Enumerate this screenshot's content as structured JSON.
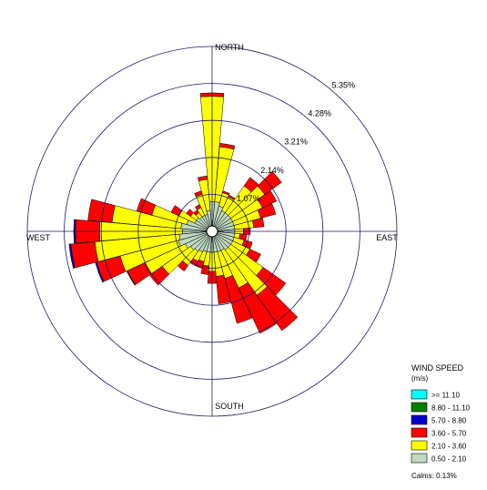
{
  "chart_data": {
    "type": "wind-rose",
    "directions": {
      "north": "NORTH",
      "east": "EAST",
      "south": "SOUTH",
      "west": "WEST"
    },
    "rings": [
      "1.07%",
      "2.14%",
      "3.21%",
      "4.28%",
      "5.35%"
    ],
    "ring_values": [
      1.07,
      2.14,
      3.21,
      4.28,
      5.35
    ],
    "legend": {
      "title": "WIND SPEED",
      "unit": "(m/s)",
      "calms": "Calms: 0.13%"
    },
    "bins": [
      {
        "label": ">= 11.10",
        "color": "#00ffff"
      },
      {
        "label": "8.80 - 11.10",
        "color": "#008000"
      },
      {
        "label": "5.70 - 8.80",
        "color": "#0000cc"
      },
      {
        "label": "3.60 - 5.70",
        "color": "#ff0000"
      },
      {
        "label": "2.10 - 3.60",
        "color": "#ffff00"
      },
      {
        "label": "0.50 - 2.10",
        "color": "#c0d8c0"
      }
    ],
    "sector_degrees": [
      0,
      10,
      20,
      30,
      40,
      50,
      60,
      70,
      80,
      90,
      100,
      110,
      120,
      130,
      140,
      150,
      160,
      170,
      180,
      190,
      200,
      210,
      220,
      230,
      240,
      250,
      260,
      270,
      280,
      290,
      300,
      310,
      320,
      330,
      340,
      350
    ],
    "sectors": [
      [
        0.7,
        3.05,
        0.1,
        0,
        0,
        0
      ],
      [
        0.7,
        1.6,
        0.1,
        0,
        0,
        0
      ],
      [
        0.6,
        0.4,
        0.05,
        0,
        0,
        0
      ],
      [
        0.5,
        0.45,
        0.05,
        0,
        0,
        0
      ],
      [
        0.5,
        0.95,
        0.3,
        0,
        0,
        0
      ],
      [
        0.5,
        1.2,
        0.6,
        0,
        0,
        0
      ],
      [
        0.5,
        0.95,
        0.45,
        0,
        0,
        0
      ],
      [
        0.5,
        0.8,
        0.45,
        0,
        0,
        0
      ],
      [
        0.5,
        0.55,
        0.3,
        0,
        0,
        0
      ],
      [
        0.5,
        0.25,
        0.2,
        0,
        0,
        0
      ],
      [
        0.5,
        0.15,
        0.2,
        0,
        0,
        0
      ],
      [
        0.5,
        0.3,
        0.25,
        0,
        0,
        0
      ],
      [
        0.5,
        0.55,
        0.35,
        0,
        0,
        0
      ],
      [
        0.5,
        1.15,
        0.8,
        0,
        0,
        0
      ],
      [
        0.5,
        1.6,
        1.25,
        0,
        0,
        0
      ],
      [
        0.45,
        1.2,
        1.45,
        0,
        0,
        0
      ],
      [
        0.45,
        0.8,
        1.35,
        0,
        0,
        0
      ],
      [
        0.45,
        0.7,
        0.8,
        0,
        0,
        0
      ],
      [
        0.45,
        0.55,
        0.35,
        0,
        0,
        0
      ],
      [
        0.45,
        0.4,
        0.25,
        0,
        0,
        0
      ],
      [
        0.45,
        0.3,
        0.2,
        0,
        0,
        0
      ],
      [
        0.5,
        0.3,
        0.15,
        0,
        0,
        0
      ],
      [
        0.55,
        0.5,
        0.2,
        0,
        0,
        0
      ],
      [
        0.6,
        1.0,
        0.45,
        0,
        0,
        0
      ],
      [
        0.7,
        1.3,
        0.55,
        0.02,
        0,
        0
      ],
      [
        0.85,
        1.75,
        0.7,
        0.04,
        0,
        0
      ],
      [
        0.8,
        2.45,
        0.7,
        0.05,
        0,
        0
      ],
      [
        0.7,
        2.4,
        0.7,
        0.05,
        0,
        0
      ],
      [
        0.75,
        2.0,
        0.7,
        0,
        0,
        0
      ],
      [
        0.6,
        1.05,
        0.45,
        0,
        0,
        0
      ],
      [
        0.4,
        0.5,
        0.25,
        0,
        0,
        0
      ],
      [
        0.4,
        0.2,
        0.15,
        0,
        0,
        0
      ],
      [
        0.35,
        0.15,
        0.1,
        0,
        0,
        0
      ],
      [
        0.35,
        0.25,
        0.1,
        0,
        0,
        0
      ],
      [
        0.35,
        0.6,
        0.1,
        0,
        0,
        0
      ],
      [
        0.45,
        0.9,
        0.1,
        0,
        0,
        0
      ]
    ]
  }
}
